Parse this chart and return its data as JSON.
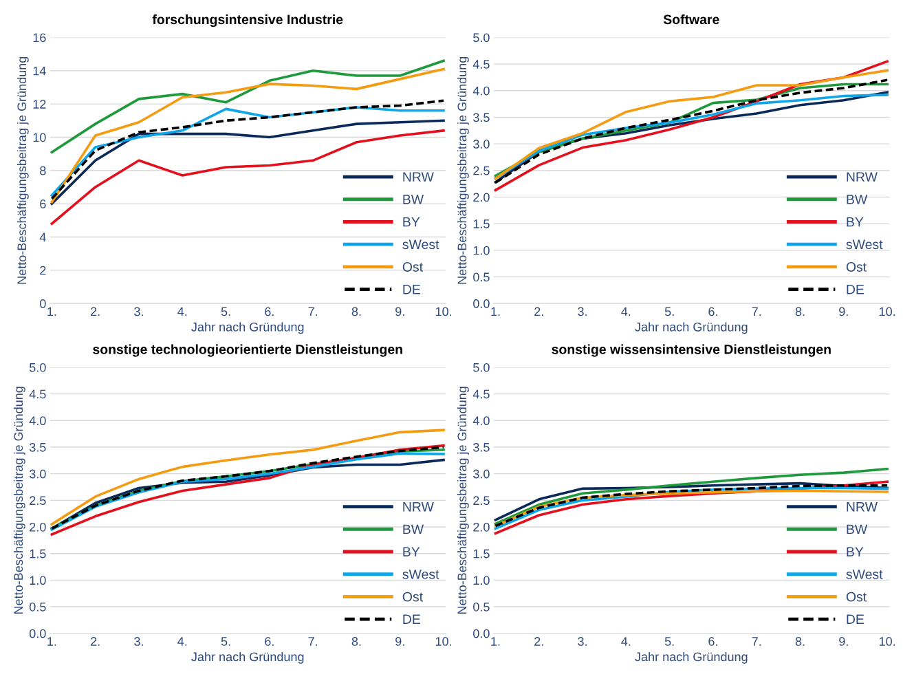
{
  "chart_data": [
    {
      "type": "line",
      "title": "forschungsintensive Industrie",
      "xlabel": "Jahr nach Gründung",
      "ylabel": "Netto-Beschäftigungsbeitrag je Gründung",
      "categories": [
        "1.",
        "2.",
        "3.",
        "4.",
        "5.",
        "6.",
        "7.",
        "8.",
        "9.",
        "10."
      ],
      "ylim": [
        0,
        16
      ],
      "yticks": [
        0,
        2,
        4,
        6,
        8,
        10,
        12,
        14,
        16
      ],
      "grid": "y",
      "legend": "bottom right",
      "marker": "none",
      "series": [
        {
          "name": "NRW",
          "color": "#0b2a5a",
          "line_style": "solid",
          "values": [
            6.0,
            8.6,
            10.2,
            10.2,
            10.2,
            10.0,
            10.4,
            10.8,
            10.9,
            11.0
          ]
        },
        {
          "name": "BW",
          "color": "#1e9a3c",
          "line_style": "solid",
          "values": [
            9.1,
            10.8,
            12.3,
            12.6,
            12.1,
            13.4,
            14.0,
            13.7,
            13.7,
            14.6
          ]
        },
        {
          "name": "BY",
          "color": "#e3101e",
          "line_style": "solid",
          "values": [
            4.8,
            7.0,
            8.6,
            7.7,
            8.2,
            8.3,
            8.6,
            9.7,
            10.1,
            10.4
          ]
        },
        {
          "name": "sWest",
          "color": "#0ea5e9",
          "line_style": "solid",
          "values": [
            6.5,
            9.4,
            10.0,
            10.4,
            11.7,
            11.2,
            11.5,
            11.8,
            11.6,
            11.6
          ]
        },
        {
          "name": "Ost",
          "color": "#f39c12",
          "line_style": "solid",
          "values": [
            6.1,
            10.1,
            10.9,
            12.4,
            12.7,
            13.2,
            13.1,
            12.9,
            13.5,
            14.1
          ]
        },
        {
          "name": "DE",
          "color": "#000000",
          "line_style": "dashed",
          "values": [
            6.3,
            9.2,
            10.3,
            10.6,
            11.0,
            11.2,
            11.5,
            11.8,
            11.9,
            12.2
          ]
        }
      ]
    },
    {
      "type": "line",
      "title": "Software",
      "xlabel": "Jahr nach Gründung",
      "ylabel": "Netto-Beschäftigungsbeitrag je Gründung",
      "categories": [
        "1.",
        "2.",
        "3.",
        "4.",
        "5.",
        "6.",
        "7.",
        "8.",
        "9.",
        "10."
      ],
      "ylim": [
        0,
        5
      ],
      "yticks": [
        {
          "value": 0,
          "label": "0.0"
        },
        0.5,
        {
          "value": 1,
          "label": "1.0"
        },
        1.5,
        {
          "value": 2,
          "label": "2.0"
        },
        2.5,
        {
          "value": 3,
          "label": "3.0"
        },
        3.5,
        {
          "value": 4,
          "label": "4.0"
        },
        4.5,
        {
          "value": 5,
          "label": "5.0"
        }
      ],
      "grid": "y",
      "legend": "bottom right",
      "marker": "none",
      "series": [
        {
          "name": "NRW",
          "color": "#0b2a5a",
          "line_style": "solid",
          "values": [
            2.28,
            2.85,
            3.1,
            3.2,
            3.35,
            3.47,
            3.57,
            3.73,
            3.82,
            3.97
          ]
        },
        {
          "name": "BW",
          "color": "#1e9a3c",
          "line_style": "solid",
          "values": [
            2.4,
            2.85,
            3.1,
            3.25,
            3.4,
            3.77,
            3.83,
            4.05,
            4.12,
            4.12
          ]
        },
        {
          "name": "BY",
          "color": "#e3101e",
          "line_style": "solid",
          "values": [
            2.13,
            2.6,
            2.93,
            3.07,
            3.27,
            3.5,
            3.8,
            4.12,
            4.25,
            4.55
          ]
        },
        {
          "name": "sWest",
          "color": "#0ea5e9",
          "line_style": "solid",
          "values": [
            2.35,
            2.87,
            3.17,
            3.3,
            3.4,
            3.55,
            3.76,
            3.82,
            3.9,
            3.92
          ]
        },
        {
          "name": "Ost",
          "color": "#f39c12",
          "line_style": "solid",
          "values": [
            2.35,
            2.92,
            3.2,
            3.6,
            3.8,
            3.88,
            4.1,
            4.1,
            4.25,
            4.38
          ]
        },
        {
          "name": "DE",
          "color": "#000000",
          "line_style": "dashed",
          "values": [
            2.27,
            2.8,
            3.1,
            3.3,
            3.45,
            3.62,
            3.82,
            3.96,
            4.05,
            4.2
          ]
        }
      ]
    },
    {
      "type": "line",
      "title": "sonstige technologieorientierte Dienstleistungen",
      "xlabel": "Jahr nach Gründung",
      "ylabel": "Netto-Beschäftigungsbeitrag je Gründung",
      "categories": [
        "1.",
        "2.",
        "3.",
        "4.",
        "5.",
        "6.",
        "7.",
        "8.",
        "9.",
        "10."
      ],
      "ylim": [
        0,
        5
      ],
      "yticks": [
        {
          "value": 0,
          "label": "0.0"
        },
        0.5,
        {
          "value": 1,
          "label": "1.0"
        },
        1.5,
        {
          "value": 2,
          "label": "2.0"
        },
        2.5,
        {
          "value": 3,
          "label": "3.0"
        },
        3.5,
        {
          "value": 4,
          "label": "4.0"
        },
        4.5,
        {
          "value": 5,
          "label": "5.0"
        }
      ],
      "grid": "y",
      "legend": "bottom right",
      "marker": "none",
      "series": [
        {
          "name": "NRW",
          "color": "#0b2a5a",
          "line_style": "solid",
          "values": [
            1.97,
            2.45,
            2.73,
            2.83,
            2.85,
            2.97,
            3.12,
            3.17,
            3.17,
            3.26
          ]
        },
        {
          "name": "BW",
          "color": "#1e9a3c",
          "line_style": "solid",
          "values": [
            1.97,
            2.4,
            2.68,
            2.86,
            2.95,
            3.05,
            3.18,
            3.3,
            3.42,
            3.45
          ]
        },
        {
          "name": "BY",
          "color": "#e3101e",
          "line_style": "solid",
          "values": [
            1.86,
            2.2,
            2.47,
            2.68,
            2.8,
            2.92,
            3.17,
            3.3,
            3.45,
            3.53
          ]
        },
        {
          "name": "sWest",
          "color": "#0ea5e9",
          "line_style": "solid",
          "values": [
            1.95,
            2.38,
            2.65,
            2.85,
            2.9,
            3.0,
            3.13,
            3.27,
            3.38,
            3.37
          ]
        },
        {
          "name": "Ost",
          "color": "#f39c12",
          "line_style": "solid",
          "values": [
            2.05,
            2.57,
            2.9,
            3.13,
            3.25,
            3.36,
            3.45,
            3.62,
            3.78,
            3.82
          ]
        },
        {
          "name": "DE",
          "color": "#000000",
          "line_style": "dashed",
          "values": [
            1.97,
            2.4,
            2.68,
            2.87,
            2.95,
            3.05,
            3.2,
            3.32,
            3.43,
            3.5
          ]
        }
      ]
    },
    {
      "type": "line",
      "title": "sonstige wissensintensive Dienstleistungen",
      "xlabel": "Jahr nach Gründung",
      "ylabel": "Netto-Beschäftigungsbeitrag je Gründung",
      "categories": [
        "1.",
        "2.",
        "3.",
        "4.",
        "5.",
        "6.",
        "7.",
        "8.",
        "9.",
        "10."
      ],
      "ylim": [
        0,
        5
      ],
      "yticks": [
        {
          "value": 0,
          "label": "0.0"
        },
        0.5,
        {
          "value": 1,
          "label": "1.0"
        },
        1.5,
        {
          "value": 2,
          "label": "2.0"
        },
        2.5,
        {
          "value": 3,
          "label": "3.0"
        },
        3.5,
        {
          "value": 4,
          "label": "4.0"
        },
        4.5,
        {
          "value": 5,
          "label": "5.0"
        }
      ],
      "grid": "y",
      "legend": "bottom right",
      "marker": "none",
      "series": [
        {
          "name": "NRW",
          "color": "#0b2a5a",
          "line_style": "solid",
          "values": [
            2.13,
            2.52,
            2.72,
            2.73,
            2.75,
            2.78,
            2.8,
            2.82,
            2.77,
            2.73
          ]
        },
        {
          "name": "BW",
          "color": "#1e9a3c",
          "line_style": "solid",
          "values": [
            2.06,
            2.42,
            2.63,
            2.7,
            2.78,
            2.85,
            2.92,
            2.98,
            3.02,
            3.09
          ]
        },
        {
          "name": "BY",
          "color": "#e3101e",
          "line_style": "solid",
          "values": [
            1.88,
            2.22,
            2.42,
            2.52,
            2.58,
            2.63,
            2.67,
            2.72,
            2.78,
            2.85
          ]
        },
        {
          "name": "sWest",
          "color": "#0ea5e9",
          "line_style": "solid",
          "values": [
            1.97,
            2.32,
            2.5,
            2.57,
            2.66,
            2.7,
            2.72,
            2.73,
            2.73,
            2.72
          ]
        },
        {
          "name": "Ost",
          "color": "#f39c12",
          "line_style": "solid",
          "values": [
            2.02,
            2.38,
            2.55,
            2.6,
            2.63,
            2.65,
            2.67,
            2.68,
            2.67,
            2.66
          ]
        },
        {
          "name": "DE",
          "color": "#000000",
          "line_style": "dashed",
          "values": [
            2.02,
            2.36,
            2.55,
            2.62,
            2.67,
            2.7,
            2.73,
            2.77,
            2.78,
            2.78
          ]
        }
      ]
    }
  ]
}
